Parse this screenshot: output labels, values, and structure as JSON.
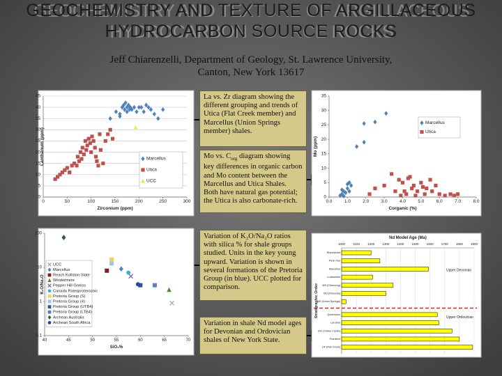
{
  "title_lines": [
    "GEOCHEMISTRY AND TEXTURE OF ARGILLACEOUS",
    "HYDROCARBON SOURCE ROCKS"
  ],
  "subtitle_lines": [
    "Jeff Chiarenzelli, Department of Geology, St. Lawrence University,",
    "Canton, New York 13617"
  ],
  "captions": [
    [
      "La vs. Zr diagram showing the different grouping and trends of Utica (Flat Creek member) and Marcellus (Union Springs member) shales."
    ],
    [
      "Mo vs. C",
      "org",
      " diagram showing key differences in organic carbon and Mo content between the Marcellus and Utica Shales.  Both have natural gas potential; the Utica is also carbonate-rich."
    ],
    [
      "Variation of K₂O/Na₂O ratios with silica % for shale groups studied.  Units in the key young upward.  Variation is shown in several formations of the Pretoria Group (in blue).  UCC plotted for comparison."
    ],
    [
      "Variation in shale Nd model ages for Devonian and Ordovician shales of New York State."
    ]
  ],
  "chart_data": [
    {
      "type": "scatter",
      "x_label": "Zirconium (ppm)",
      "y_label": "Lanthanum (ppm)",
      "xlim": [
        0,
        300
      ],
      "xticks": [
        0,
        50,
        100,
        150,
        200,
        250,
        300
      ],
      "ylim": [
        0,
        45
      ],
      "yticks": [
        0,
        5,
        10,
        15,
        20,
        25,
        30,
        35,
        40,
        45
      ],
      "grid": true,
      "series": [
        {
          "name": "Marcellus",
          "color": "#4f81bd",
          "marker": "diamond",
          "x": [
            140,
            152,
            160,
            165,
            168,
            170,
            172,
            175,
            178,
            180,
            182,
            185,
            190,
            195,
            200,
            205,
            210,
            215,
            220,
            225,
            232,
            240,
            250,
            160,
            175
          ],
          "y": [
            35,
            38,
            37,
            40,
            41,
            39,
            42,
            40,
            41,
            39,
            40,
            39,
            40,
            38,
            40,
            40,
            38,
            41,
            40,
            39,
            37,
            35,
            39,
            36,
            38
          ]
        },
        {
          "name": "Utica",
          "color": "#c0504d",
          "marker": "square",
          "x": [
            25,
            30,
            35,
            40,
            45,
            50,
            55,
            60,
            65,
            70,
            72,
            75,
            78,
            80,
            82,
            85,
            88,
            90,
            92,
            95,
            98,
            100,
            102,
            105,
            108,
            110,
            112,
            115,
            118,
            120,
            125,
            130,
            135,
            140,
            145
          ],
          "y": [
            8,
            9,
            10,
            11,
            12,
            13,
            11,
            14,
            15,
            14,
            18,
            16,
            20,
            17,
            22,
            19,
            25,
            21,
            23,
            26,
            24,
            20,
            27,
            25,
            22,
            18,
            16,
            14,
            28,
            21,
            15,
            25,
            28,
            30,
            26
          ]
        },
        {
          "name": "UCC",
          "color": "#e8e84a",
          "marker": "triangle",
          "x": [
            193
          ],
          "y": [
            31
          ]
        }
      ]
    },
    {
      "type": "scatter",
      "x_label": "Corganic (%)",
      "y_label": "Mo (ppm)",
      "xlim": [
        0,
        8
      ],
      "xticks": [
        {
          "value": 0,
          "label": "0.0"
        },
        {
          "value": 1,
          "label": "1.0"
        },
        {
          "value": 2,
          "label": "2.0"
        },
        {
          "value": 3,
          "label": "3.0"
        },
        {
          "value": 4,
          "label": "4.0"
        },
        {
          "value": 5,
          "label": "5.0"
        },
        {
          "value": 6,
          "label": "6.0"
        },
        {
          "value": 7,
          "label": "7.0"
        },
        {
          "value": 8,
          "label": "8.0"
        }
      ],
      "ylim": [
        0,
        35
      ],
      "yticks": [
        0,
        5,
        10,
        15,
        20,
        25,
        30,
        35
      ],
      "grid": false,
      "series": [
        {
          "name": "Marcellus",
          "color": "#4f81bd",
          "marker": "diamond",
          "x": [
            0.6,
            0.7,
            0.8,
            0.9,
            1.0,
            1.1,
            0.8,
            0.7,
            1.2,
            1.1,
            1.0,
            1.5,
            1.9,
            1.9,
            2.5,
            3.1
          ],
          "y": [
            0.5,
            1,
            2,
            1.5,
            3,
            5,
            0.3,
            2.5,
            4,
            2,
            4.5,
            17.5,
            19,
            25.5,
            26,
            29
          ]
        },
        {
          "name": "Utica",
          "color": "#c0504d",
          "marker": "square",
          "x": [
            2.2,
            2.5,
            3.0,
            3.4,
            3.6,
            3.8,
            4.0,
            4.2,
            4.4,
            4.5,
            4.6,
            4.8,
            5.0,
            5.2,
            5.3,
            5.5,
            5.6,
            5.8,
            6.0,
            6.3,
            6.6,
            6.8,
            7.0,
            4.1,
            3.9,
            4.7,
            5.1,
            4.3
          ],
          "y": [
            1,
            3,
            4,
            8,
            2,
            6,
            5,
            1,
            7,
            3,
            4,
            2,
            5,
            1,
            3,
            6,
            2,
            4,
            1,
            0.5,
            1,
            0.5,
            1,
            2,
            0.5,
            0.5,
            3.5,
            6.5
          ]
        }
      ]
    },
    {
      "type": "scatter",
      "x_label": "SiO₂%",
      "y_label": "K₂O/Na₂O",
      "log_y": true,
      "xlim": [
        40,
        70
      ],
      "xticks": [
        40,
        45,
        50,
        55,
        60,
        65,
        70
      ],
      "ylim": [
        0.1,
        100
      ],
      "yticks": [
        0.1,
        1,
        10,
        100
      ],
      "grid": false,
      "series": [
        {
          "name": "UCC",
          "color": "#a0a0a0",
          "marker": "cross",
          "x": [
            66.6
          ],
          "y": [
            0.9
          ]
        },
        {
          "name": "Marcellus",
          "color": "#4f81bd",
          "marker": "diamond",
          "x": [
            56
          ],
          "y": [
            9
          ]
        },
        {
          "name": "Reach Kollston Slate",
          "color": "#7f2020",
          "marker": "square",
          "x": [
            53
          ],
          "y": [
            8
          ]
        },
        {
          "name": "Windermere",
          "color": "#4e8a3a",
          "marker": "triangle",
          "x": [
            66
          ],
          "y": [
            2.2
          ]
        },
        {
          "name": "Pepper Hill Gneiss",
          "color": "#7a5a9a",
          "marker": "cross",
          "x": [
            58
          ],
          "y": [
            5.5
          ]
        },
        {
          "name": "Canada Paleoproterozoic",
          "color": "#4bacc6",
          "marker": "circle",
          "x": [
            57.5
          ],
          "y": [
            7
          ]
        },
        {
          "name": "Pretoria Group (S)",
          "color": "#f2d34a",
          "marker": "square",
          "x": [
            54
          ],
          "y": [
            17
          ]
        },
        {
          "name": "Pretoria Group (4)",
          "color": "#9ec3e6",
          "marker": "square",
          "x": [
            54
          ],
          "y": [
            13
          ]
        },
        {
          "name": "Pretoria Group (UTB4)",
          "color": "#2f5597",
          "marker": "square",
          "x": [
            60
          ],
          "y": [
            3
          ]
        },
        {
          "name": "Pretoria Group (LTB4)",
          "color": "#5b7fbf",
          "marker": "square",
          "x": [
            63
          ],
          "y": [
            3
          ]
        },
        {
          "name": "Archean Australia",
          "color": "#2e5e3a",
          "marker": "diamond",
          "x": [
            44
          ],
          "y": [
            75
          ]
        },
        {
          "name": "Archean South Africa",
          "color": "#1f4e99",
          "marker": "circle",
          "x": [
            59.5
          ],
          "y": [
            3.2
          ]
        }
      ]
    },
    {
      "type": "hbar",
      "title": "Nd Model Age (Ma)",
      "y_label": "Stratigraphic Order",
      "xlim": [
        1000,
        1900
      ],
      "xticks": [
        1000,
        1100,
        1200,
        1300,
        1400,
        1500,
        1600,
        1700,
        1800,
        1900
      ],
      "categories": [
        "Rhinestreet",
        "Penn Yan",
        "Marcellus",
        "Ludlowville",
        "MS (Chemung)",
        "MS (Oneonta)",
        "MS (Union Springs)",
        "Queenston",
        "Lorraine",
        "UIC (Indian Castle)",
        "Frankfort",
        "UF (Flat Creek)"
      ],
      "values": [
        1200,
        1260,
        1590,
        1210,
        1350,
        1300,
        1030,
        1650,
        1660,
        1750,
        1800,
        1890
      ],
      "color": "#ffff00",
      "grid": true,
      "annotations": [
        "Upper Devonian",
        "Upper Ordovician"
      ]
    }
  ]
}
